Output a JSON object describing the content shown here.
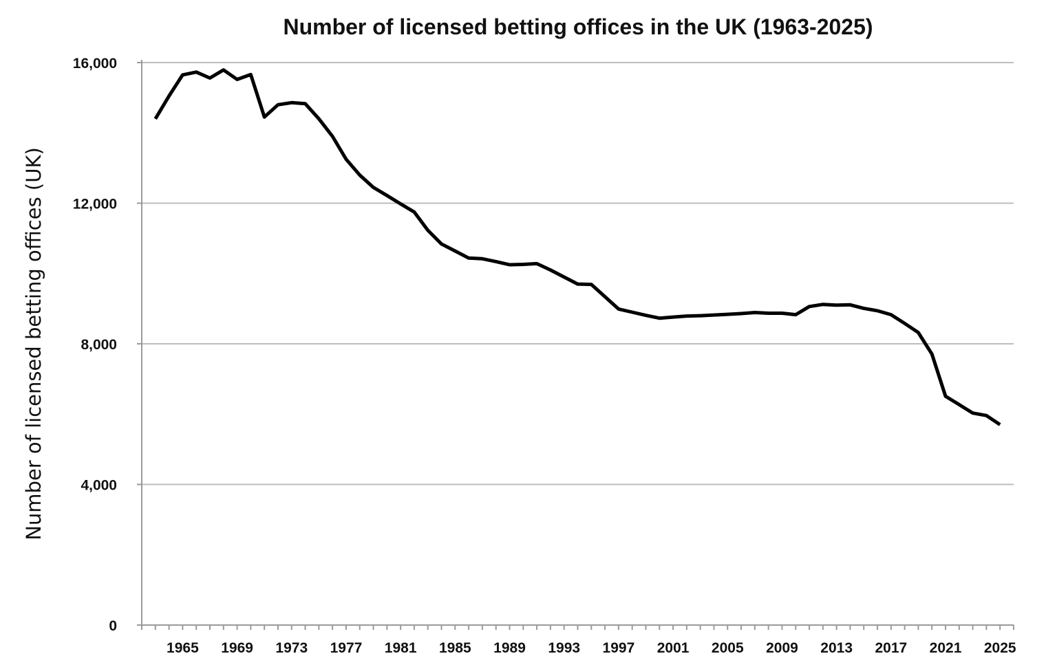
{
  "chart_data": {
    "type": "line",
    "title": "Number of licensed betting offices in the UK (1963-2025)",
    "xlabel": "",
    "ylabel": "Number of licensed betting offices (UK)",
    "xlim": [
      1962,
      2026
    ],
    "ylim": [
      0,
      16000
    ],
    "y_ticks": [
      0,
      4000,
      8000,
      12000,
      16000
    ],
    "y_tick_labels": [
      "0",
      "4,000",
      "8,000",
      "12,000",
      "16,000"
    ],
    "x_ticks": [
      1965,
      1969,
      1973,
      1977,
      1981,
      1985,
      1989,
      1993,
      1997,
      2001,
      2005,
      2009,
      2013,
      2017,
      2021,
      2025
    ],
    "x_tick_labels": [
      "1965",
      "1969",
      "1973",
      "1977",
      "1981",
      "1985",
      "1989",
      "1993",
      "1997",
      "2001",
      "2005",
      "2009",
      "2013",
      "2017",
      "2021",
      "2025"
    ],
    "grid": true,
    "series": [
      {
        "color": "#000000",
        "x": [
          1963,
          1964,
          1965,
          1966,
          1967,
          1968,
          1969,
          1970,
          1971,
          1972,
          1973,
          1974,
          1975,
          1976,
          1977,
          1978,
          1979,
          1980,
          1981,
          1982,
          1983,
          1984,
          1985,
          1986,
          1987,
          1988,
          1989,
          1990,
          1991,
          1992,
          1993,
          1994,
          1995,
          1996,
          1997,
          1998,
          1999,
          2000,
          2001,
          2002,
          2003,
          2004,
          2005,
          2006,
          2007,
          2008,
          2009,
          2010,
          2011,
          2012,
          2013,
          2014,
          2015,
          2016,
          2017,
          2018,
          2019,
          2020,
          2021,
          2022,
          2023,
          2024,
          2025
        ],
        "values": [
          14400,
          15050,
          15650,
          15730,
          15560,
          15790,
          15520,
          15660,
          14450,
          14800,
          14860,
          14830,
          14400,
          13900,
          13250,
          12800,
          12450,
          12220,
          11980,
          11750,
          11230,
          10840,
          10640,
          10440,
          10420,
          10340,
          10250,
          10260,
          10280,
          10100,
          9900,
          9700,
          9690,
          9340,
          8990,
          8900,
          8810,
          8730,
          8760,
          8790,
          8800,
          8820,
          8840,
          8860,
          8890,
          8870,
          8870,
          8830,
          9060,
          9120,
          9100,
          9110,
          9010,
          8940,
          8830,
          8580,
          8320,
          7710,
          6510,
          6270,
          6030,
          5960,
          5700
        ]
      }
    ]
  }
}
